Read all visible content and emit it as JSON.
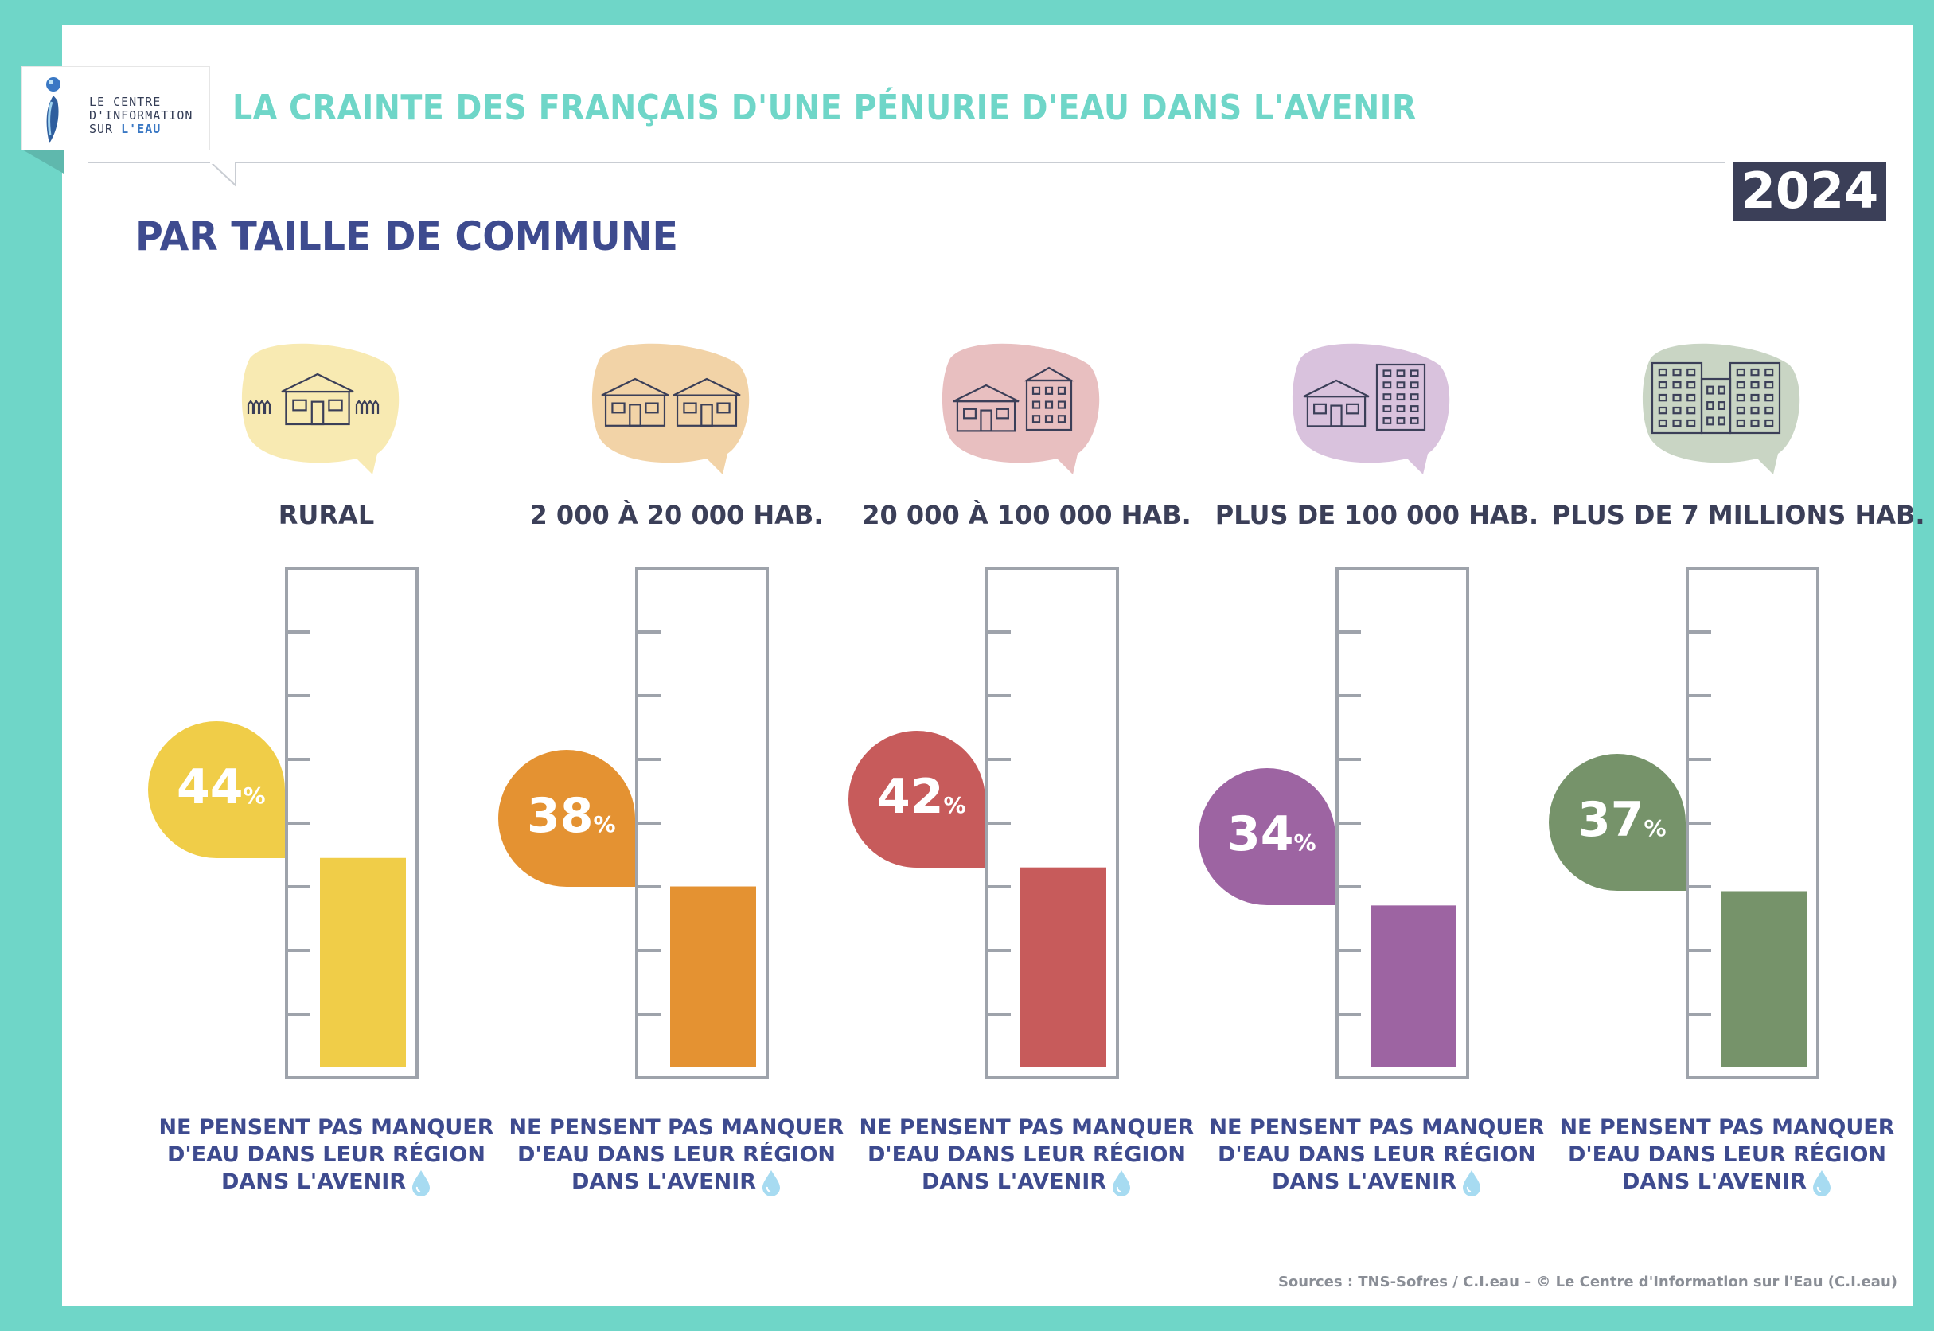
{
  "header": {
    "logo_line1": "LE CENTRE",
    "logo_line2": "D'INFORMATION",
    "logo_line3_prefix": "SUR ",
    "logo_line3_accent": "L'EAU",
    "title": "LA CRAINTE DES FRANÇAIS D'UNE PÉNURIE D'EAU DANS L'AVENIR",
    "year": "2024",
    "subtitle": "PAR TAILLE DE COMMUNE"
  },
  "caption_lines": [
    "NE PENSENT PAS MANQUER",
    "D'EAU DANS LEUR RÉGION",
    "DANS L'AVENIR"
  ],
  "source": "Sources : TNS-Sofres / C.I.eau – © Le Centre d'Information sur l'Eau (C.I.eau)",
  "chart_data": {
    "type": "bar",
    "categories": [
      "RURAL",
      "2 000 À 20 000 HAB.",
      "20 000 À 100 000 HAB.",
      "PLUS DE 100 000 HAB.",
      "PLUS DE 7 MILLIONS HAB."
    ],
    "values": [
      44,
      38,
      42,
      34,
      37
    ],
    "value_labels": [
      "44",
      "38",
      "42",
      "34",
      "37"
    ],
    "unit": "%",
    "ylim": [
      0,
      100
    ],
    "colors": [
      "#f0cd48",
      "#e49232",
      "#c75b5b",
      "#9d64a2",
      "#76936a"
    ],
    "bubble_colors": [
      "#f8eab2",
      "#f2d3a7",
      "#e8bfc0",
      "#d9c2dd",
      "#c9d5c4"
    ],
    "icons": [
      "rural-house-icon",
      "two-houses-icon",
      "house-and-building-icon",
      "house-and-tower-icon",
      "apartment-blocks-icon"
    ]
  }
}
